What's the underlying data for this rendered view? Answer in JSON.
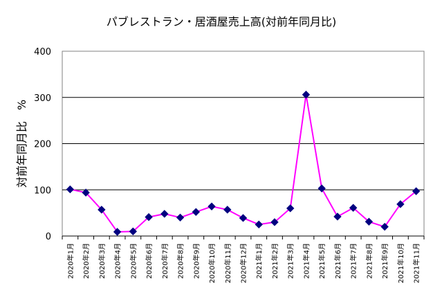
{
  "chart_data": {
    "type": "line",
    "title": "パブレストラン・居酒屋売上高(対前年同月比)",
    "xlabel": "",
    "ylabel": "対前年同月比　%",
    "ylim": [
      0,
      400
    ],
    "yticks": [
      0,
      100,
      200,
      300,
      400
    ],
    "grid": true,
    "legend": "none",
    "colors": {
      "line": "#ff00ff",
      "marker": "#000080",
      "grid": "#000000",
      "axis": "#808080"
    },
    "categories": [
      "2020年1月",
      "2020年2月",
      "2020年3月",
      "2020年4月",
      "2020年5月",
      "2020年6月",
      "2020年7月",
      "2020年8月",
      "2020年9月",
      "2020年10月",
      "2020年11月",
      "2020年12月",
      "2021年1月",
      "2021年2月",
      "2021年3月",
      "2021年4月",
      "2021年5月",
      "2021年6月",
      "2021年7月",
      "2021年8月",
      "2021年9月",
      "2021年10月",
      "2021年11月"
    ],
    "series": [
      {
        "values": [
          101,
          94,
          57,
          9,
          10,
          41,
          48,
          40,
          52,
          64,
          57,
          39,
          25,
          30,
          60,
          306,
          103,
          42,
          61,
          31,
          20,
          69,
          97
        ]
      }
    ]
  }
}
